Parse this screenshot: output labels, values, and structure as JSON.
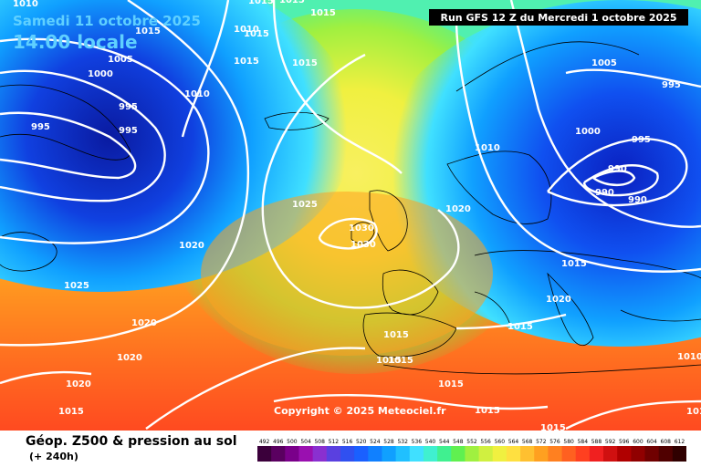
{
  "header": {
    "date": "Samedi 11 octobre 2025",
    "time": "14.00 locale",
    "run": "Run GFS 12 Z du Mercredi 1 octobre 2025"
  },
  "copyright": "Copyright © 2025 Meteociel.fr",
  "footer": {
    "title": "Géop. Z500 & pression au sol",
    "forecast_step": "(+ 240h)"
  },
  "legend": {
    "values": [
      "492",
      "496",
      "500",
      "504",
      "508",
      "512",
      "516",
      "520",
      "524",
      "528",
      "532",
      "536",
      "540",
      "544",
      "548",
      "552",
      "556",
      "560",
      "564",
      "568",
      "572",
      "576",
      "580",
      "584",
      "588",
      "592",
      "596",
      "600",
      "604",
      "608",
      "612"
    ],
    "colors": [
      "#3b003b",
      "#5a0060",
      "#7a008a",
      "#9a10b0",
      "#8a30d0",
      "#5a40e0",
      "#3050f0",
      "#1a60ff",
      "#1080ff",
      "#10a0ff",
      "#20c0ff",
      "#40e0ff",
      "#40f0d0",
      "#40f090",
      "#60f050",
      "#a0f040",
      "#d0f040",
      "#f0f040",
      "#ffe040",
      "#ffc030",
      "#ffa020",
      "#ff8020",
      "#ff6020",
      "#ff4020",
      "#f02020",
      "#d01010",
      "#b00000",
      "#900000",
      "#700000",
      "#500000",
      "#300000"
    ]
  },
  "isobar_labels": [
    {
      "text": "1010"
    },
    {
      "text": "1015"
    },
    {
      "text": "1015"
    },
    {
      "text": "1015"
    },
    {
      "text": "1005"
    },
    {
      "text": "1000"
    },
    {
      "text": "995"
    },
    {
      "text": "995"
    },
    {
      "text": "995"
    },
    {
      "text": "1010"
    },
    {
      "text": "1010"
    },
    {
      "text": "1015"
    },
    {
      "text": "1015"
    },
    {
      "text": "1015"
    },
    {
      "text": "1025"
    },
    {
      "text": "1030"
    },
    {
      "text": "1030"
    },
    {
      "text": "1020"
    },
    {
      "text": "1020"
    },
    {
      "text": "1025"
    },
    {
      "text": "1020"
    },
    {
      "text": "1020"
    },
    {
      "text": "1020"
    },
    {
      "text": "1015"
    },
    {
      "text": "1015"
    },
    {
      "text": "1015"
    },
    {
      "text": "1015"
    },
    {
      "text": "1015"
    },
    {
      "text": "1015"
    },
    {
      "text": "1015"
    },
    {
      "text": "1015"
    },
    {
      "text": "1020"
    },
    {
      "text": "1015"
    },
    {
      "text": "1010"
    },
    {
      "text": "1010"
    },
    {
      "text": "1005"
    },
    {
      "text": "995"
    },
    {
      "text": "1000"
    },
    {
      "text": "995"
    },
    {
      "text": "990"
    },
    {
      "text": "990"
    },
    {
      "text": "990"
    },
    {
      "text": "1010"
    },
    {
      "text": "1015"
    }
  ]
}
